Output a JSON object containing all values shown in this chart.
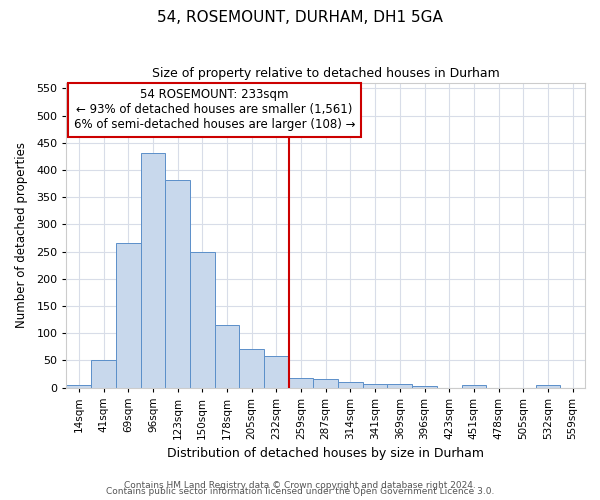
{
  "title": "54, ROSEMOUNT, DURHAM, DH1 5GA",
  "subtitle": "Size of property relative to detached houses in Durham",
  "xlabel": "Distribution of detached houses by size in Durham",
  "ylabel": "Number of detached properties",
  "bar_color": "#c8d8ec",
  "bar_edge_color": "#5b8fc9",
  "categories": [
    "14sqm",
    "41sqm",
    "69sqm",
    "96sqm",
    "123sqm",
    "150sqm",
    "178sqm",
    "205sqm",
    "232sqm",
    "259sqm",
    "287sqm",
    "314sqm",
    "341sqm",
    "369sqm",
    "396sqm",
    "423sqm",
    "451sqm",
    "478sqm",
    "505sqm",
    "532sqm",
    "559sqm"
  ],
  "values": [
    5,
    50,
    265,
    432,
    382,
    250,
    115,
    70,
    58,
    17,
    15,
    10,
    7,
    6,
    2,
    0,
    5,
    0,
    0,
    5,
    0
  ],
  "vline_x_index": 8,
  "vline_color": "#cc0000",
  "annotation_title": "54 ROSEMOUNT: 233sqm",
  "annotation_line1": "← 93% of detached houses are smaller (1,561)",
  "annotation_line2": "6% of semi-detached houses are larger (108) →",
  "annotation_box_color": "#ffffff",
  "annotation_box_edge": "#cc0000",
  "ylim": [
    0,
    560
  ],
  "yticks": [
    0,
    50,
    100,
    150,
    200,
    250,
    300,
    350,
    400,
    450,
    500,
    550
  ],
  "footer1": "Contains HM Land Registry data © Crown copyright and database right 2024.",
  "footer2": "Contains public sector information licensed under the Open Government Licence 3.0.",
  "background_color": "#ffffff",
  "plot_bg_color": "#ffffff",
  "grid_color": "#d8dde8",
  "title_fontsize": 11,
  "subtitle_fontsize": 9,
  "xlabel_fontsize": 9,
  "ylabel_fontsize": 8.5,
  "tick_fontsize": 8,
  "xtick_fontsize": 7.5,
  "footer_fontsize": 6.5,
  "ann_fontsize": 8.5
}
